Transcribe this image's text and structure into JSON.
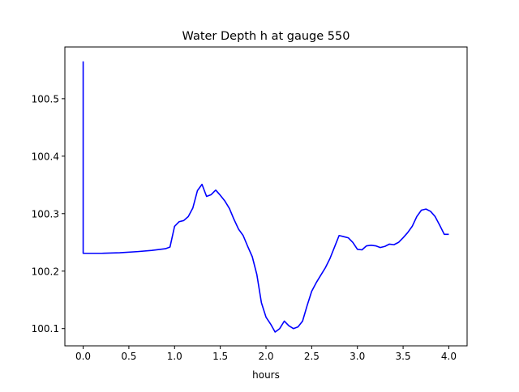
{
  "chart_data": {
    "type": "line",
    "title": "Water Depth h at gauge 550",
    "xlabel": "hours",
    "ylabel": "",
    "xlim": [
      -0.2,
      4.2
    ],
    "ylim": [
      100.07,
      100.59
    ],
    "xticks": [
      0.0,
      0.5,
      1.0,
      1.5,
      2.0,
      2.5,
      3.0,
      3.5,
      4.0
    ],
    "xtick_labels": [
      "0.0",
      "0.5",
      "1.0",
      "1.5",
      "2.0",
      "2.5",
      "3.0",
      "3.5",
      "4.0"
    ],
    "yticks": [
      100.1,
      100.2,
      100.3,
      100.4,
      100.5
    ],
    "ytick_labels": [
      "100.1",
      "100.2",
      "100.3",
      "100.4",
      "100.5"
    ],
    "grid": false,
    "legend": "none",
    "series": [
      {
        "color": "#0000ff",
        "x": [
          0.0,
          0.0,
          0.0,
          0.2,
          0.4,
          0.6,
          0.75,
          0.9,
          0.95,
          1.0,
          1.05,
          1.1,
          1.15,
          1.2,
          1.25,
          1.3,
          1.35,
          1.4,
          1.45,
          1.5,
          1.55,
          1.6,
          1.65,
          1.7,
          1.75,
          1.8,
          1.85,
          1.9,
          1.95,
          2.0,
          2.05,
          2.1,
          2.15,
          2.2,
          2.25,
          2.3,
          2.35,
          2.4,
          2.45,
          2.5,
          2.55,
          2.6,
          2.65,
          2.7,
          2.75,
          2.8,
          2.85,
          2.9,
          2.95,
          3.0,
          3.05,
          3.1,
          3.15,
          3.2,
          3.25,
          3.3,
          3.35,
          3.4,
          3.45,
          3.5,
          3.55,
          3.6,
          3.65,
          3.7,
          3.75,
          3.8,
          3.85,
          3.9,
          3.95,
          4.0
        ],
        "y": [
          100.565,
          100.32,
          100.231,
          100.231,
          100.232,
          100.234,
          100.236,
          100.239,
          100.242,
          100.278,
          100.286,
          100.288,
          100.295,
          100.31,
          100.34,
          100.351,
          100.33,
          100.333,
          100.341,
          100.332,
          100.322,
          100.309,
          100.29,
          100.273,
          100.262,
          100.243,
          100.225,
          100.194,
          100.145,
          100.12,
          100.108,
          100.094,
          100.1,
          100.113,
          100.105,
          100.1,
          100.103,
          100.113,
          100.14,
          100.165,
          100.18,
          100.193,
          100.206,
          100.222,
          100.242,
          100.262,
          100.26,
          100.258,
          100.25,
          100.238,
          100.237,
          100.244,
          100.245,
          100.244,
          100.241,
          100.243,
          100.247,
          100.246,
          100.25,
          100.258,
          100.267,
          100.278,
          100.295,
          100.306,
          100.308,
          100.304,
          100.295,
          100.28,
          100.264,
          100.264
        ]
      }
    ]
  }
}
